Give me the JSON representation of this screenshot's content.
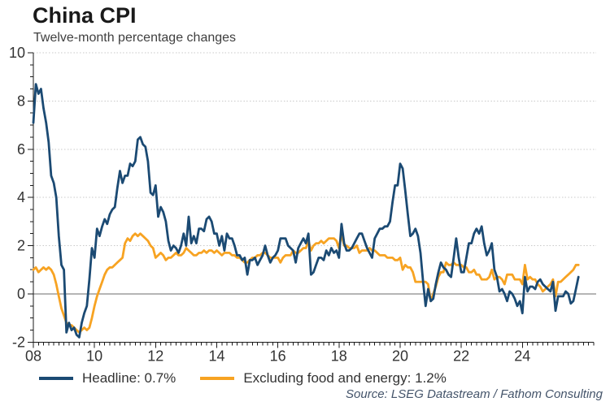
{
  "header": {
    "title": "China CPI",
    "subtitle": "Twelve-month percentage changes"
  },
  "legend": {
    "items": [
      {
        "label": "Headline: 0.7%",
        "color": "#1b4a73"
      },
      {
        "label": "Excluding food and energy: 1.2%",
        "color": "#f7a322"
      }
    ]
  },
  "footer": {
    "source": "Source: LSEG Datastream / Fathom Consulting"
  },
  "colors": {
    "headline_line": "#1b4a73",
    "core_line": "#f7a322",
    "gridline": "#c8c8c8",
    "zero_line": "#6b6b6b",
    "axis": "#1a1a1a",
    "tick_text": "#333333",
    "source_text": "#44546a"
  },
  "chart_data": {
    "type": "line",
    "title": "China CPI",
    "subtitle": "Twelve-month percentage changes",
    "frequency": "monthly",
    "x_start": "2008-01",
    "x_end": "2025-11",
    "x_axis_total_months": 220,
    "ylim": [
      -2,
      10
    ],
    "yticks": [
      -2,
      0,
      2,
      4,
      6,
      8,
      10
    ],
    "grid_values": [
      2,
      4,
      6,
      8,
      10
    ],
    "zero_line": true,
    "grid": "dotted-horizontal",
    "legend_position": "bottom",
    "xticks": [
      {
        "label": "08",
        "month": 0
      },
      {
        "label": "10",
        "month": 24
      },
      {
        "label": "12",
        "month": 48
      },
      {
        "label": "14",
        "month": 72
      },
      {
        "label": "16",
        "month": 96
      },
      {
        "label": "18",
        "month": 120
      },
      {
        "label": "20",
        "month": 144
      },
      {
        "label": "22",
        "month": 168
      },
      {
        "label": "24",
        "month": 192
      }
    ],
    "series": [
      {
        "name": "Headline",
        "latest": 0.7,
        "color": "#1b4a73",
        "values": [
          7.1,
          8.7,
          8.3,
          8.5,
          7.7,
          7.1,
          6.3,
          4.9,
          4.6,
          4.0,
          2.4,
          1.2,
          1.0,
          -1.6,
          -1.2,
          -1.5,
          -1.4,
          -1.7,
          -1.8,
          -1.2,
          -0.8,
          -0.5,
          0.6,
          1.9,
          1.5,
          2.7,
          2.4,
          2.8,
          3.1,
          2.9,
          3.3,
          3.5,
          3.6,
          4.4,
          5.1,
          4.6,
          4.9,
          4.9,
          5.4,
          5.3,
          5.5,
          6.4,
          6.5,
          6.2,
          6.1,
          5.5,
          4.2,
          4.1,
          4.5,
          3.2,
          3.6,
          3.4,
          3.0,
          2.2,
          1.8,
          2.0,
          1.9,
          1.7,
          2.0,
          2.5,
          2.0,
          3.2,
          2.1,
          2.4,
          2.1,
          2.7,
          2.7,
          2.6,
          3.1,
          3.2,
          3.0,
          2.5,
          2.5,
          2.0,
          2.4,
          1.8,
          2.5,
          2.3,
          2.3,
          2.0,
          1.6,
          1.6,
          1.4,
          1.5,
          0.8,
          1.4,
          1.4,
          1.5,
          1.2,
          1.4,
          1.6,
          2.0,
          1.6,
          1.3,
          1.5,
          1.6,
          1.8,
          2.3,
          2.3,
          2.3,
          2.0,
          1.9,
          1.8,
          1.3,
          1.9,
          2.1,
          2.3,
          2.1,
          2.5,
          0.8,
          0.9,
          1.2,
          1.5,
          1.5,
          1.4,
          1.8,
          1.6,
          1.9,
          1.7,
          1.8,
          1.5,
          2.9,
          2.1,
          1.8,
          1.8,
          1.9,
          2.1,
          2.3,
          2.5,
          2.5,
          2.2,
          1.9,
          1.7,
          1.5,
          2.3,
          2.5,
          2.7,
          2.7,
          2.8,
          2.8,
          3.0,
          3.8,
          4.5,
          4.5,
          5.4,
          5.2,
          4.3,
          3.3,
          2.4,
          2.5,
          2.7,
          2.4,
          1.7,
          0.5,
          -0.5,
          0.2,
          -0.3,
          -0.2,
          0.4,
          0.9,
          1.3,
          1.1,
          1.0,
          0.8,
          0.7,
          1.5,
          2.3,
          1.5,
          0.9,
          0.9,
          1.5,
          2.1,
          2.1,
          2.5,
          2.7,
          2.5,
          2.8,
          2.1,
          1.6,
          1.8,
          2.1,
          1.0,
          0.7,
          0.1,
          0.2,
          0.0,
          -0.3,
          0.1,
          0.0,
          -0.2,
          -0.5,
          -0.3,
          -0.8,
          0.7,
          0.1,
          0.3,
          0.3,
          0.2,
          0.5,
          0.6,
          0.4,
          0.3,
          0.2,
          0.1,
          0.5,
          -0.7,
          -0.1,
          -0.1,
          -0.1,
          0.1,
          0.0,
          -0.4,
          -0.3,
          0.2,
          0.7
        ]
      },
      {
        "name": "Excluding food and energy",
        "latest": 1.2,
        "color": "#f7a322",
        "values": [
          1.0,
          1.1,
          0.9,
          1.0,
          1.1,
          1.0,
          1.1,
          1.0,
          0.8,
          0.4,
          -0.1,
          -0.6,
          -0.9,
          -1.2,
          -1.3,
          -1.3,
          -1.4,
          -1.5,
          -1.6,
          -1.5,
          -1.4,
          -1.5,
          -1.4,
          -1.0,
          -0.5,
          -0.1,
          0.2,
          0.5,
          0.8,
          1.0,
          1.1,
          1.1,
          1.2,
          1.3,
          1.4,
          1.5,
          2.1,
          2.3,
          2.2,
          2.4,
          2.5,
          2.4,
          2.5,
          2.4,
          2.3,
          2.2,
          2.0,
          1.9,
          1.5,
          1.6,
          1.7,
          1.6,
          1.4,
          1.5,
          1.5,
          1.6,
          1.7,
          1.6,
          1.6,
          1.7,
          1.9,
          1.8,
          1.7,
          1.6,
          1.6,
          1.7,
          1.7,
          1.8,
          1.7,
          1.8,
          1.8,
          1.7,
          1.8,
          1.7,
          1.6,
          1.7,
          1.7,
          1.7,
          1.6,
          1.6,
          1.5,
          1.5,
          1.4,
          1.3,
          1.3,
          1.4,
          1.5,
          1.5,
          1.6,
          1.6,
          1.7,
          1.7,
          1.6,
          1.5,
          1.5,
          1.5,
          1.5,
          1.3,
          1.5,
          1.6,
          1.6,
          1.6,
          1.8,
          1.7,
          1.7,
          1.8,
          1.9,
          1.9,
          2.2,
          1.8,
          2.0,
          2.1,
          2.1,
          2.2,
          2.1,
          2.2,
          2.3,
          2.3,
          2.3,
          2.2,
          1.9,
          2.5,
          2.0,
          2.0,
          1.9,
          1.9,
          1.9,
          2.0,
          1.7,
          1.8,
          1.8,
          1.8,
          1.9,
          1.8,
          1.8,
          1.7,
          1.6,
          1.6,
          1.6,
          1.5,
          1.5,
          1.5,
          1.4,
          1.4,
          1.5,
          1.0,
          1.2,
          1.1,
          1.1,
          0.9,
          0.5,
          0.5,
          0.5,
          0.5,
          0.5,
          0.4,
          -0.3,
          0.0,
          0.3,
          0.7,
          0.9,
          0.9,
          1.3,
          1.2,
          1.2,
          1.3,
          1.2,
          1.2,
          1.2,
          1.1,
          1.1,
          0.9,
          0.9,
          1.0,
          0.8,
          0.8,
          0.6,
          0.6,
          0.6,
          0.7,
          1.0,
          0.6,
          0.7,
          0.7,
          0.6,
          0.4,
          0.8,
          0.8,
          0.8,
          0.6,
          0.6,
          0.6,
          0.4,
          1.2,
          0.6,
          0.7,
          0.6,
          0.6,
          0.4,
          0.3,
          0.1,
          0.2,
          0.3,
          0.4,
          0.6,
          -0.1,
          0.5,
          0.5,
          0.6,
          0.7,
          0.8,
          0.9,
          1.0,
          1.2,
          1.2
        ]
      }
    ]
  }
}
